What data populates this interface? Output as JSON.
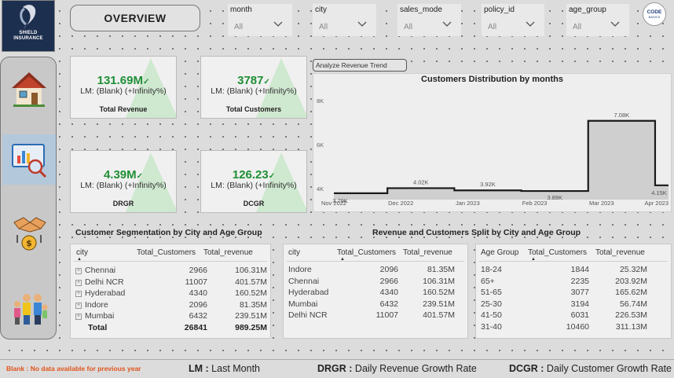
{
  "brand": {
    "line1": "SHIELD",
    "line2": "INSURANCE"
  },
  "header": {
    "title": "OVERVIEW"
  },
  "slicers": [
    {
      "label": "month",
      "value": "All"
    },
    {
      "label": "city",
      "value": "All"
    },
    {
      "label": "sales_mode",
      "value": "All"
    },
    {
      "label": "policy_id",
      "value": "All"
    },
    {
      "label": "age_group",
      "value": "All"
    }
  ],
  "partner": {
    "line1": "CODE",
    "line2": "BASICS"
  },
  "nav": [
    "home-icon",
    "analytics-icon",
    "money-handshake-icon",
    "family-icon"
  ],
  "kpis": [
    {
      "value": "131.69M",
      "lm": "LM: (Blank) (+Infinity%)",
      "title": "Total Revenue"
    },
    {
      "value": "3787",
      "lm": "LM: (Blank) (+Infinity%)",
      "title": "Total Customers"
    },
    {
      "value": "4.39M",
      "lm": "LM: (Blank) (+Infinity%)",
      "title": "DRGR"
    },
    {
      "value": "126.23",
      "lm": "LM: (Blank) (+Infinity%)",
      "title": "DCGR"
    }
  ],
  "analyze_button": "Analyze Revenue Trend",
  "chart_data": {
    "type": "area",
    "title": "Customers Distribution by months",
    "x": [
      "Nov 2022",
      "Dec 2022",
      "Jan 2023",
      "Feb 2023",
      "Mar 2023",
      "Apr 2023"
    ],
    "values": [
      3790,
      4020,
      3920,
      3890,
      7080,
      4150
    ],
    "data_labels": [
      "3.79K",
      "4.02K",
      "3.92K",
      "3.89K",
      "7.08K",
      "4.15K"
    ],
    "yticks": [
      "4K",
      "6K",
      "8K"
    ],
    "ylim": [
      3500,
      8500
    ],
    "grid": false,
    "step": true
  },
  "sections": {
    "segmentation": "Customer Segmentation by City and Age Group",
    "split": "Revenue and Customers Split by City and Age Group"
  },
  "table1": {
    "headers": [
      "city",
      "Total_Customers",
      "Total_revenue"
    ],
    "rows": [
      [
        "Chennai",
        "2966",
        "106.31M"
      ],
      [
        "Delhi NCR",
        "11007",
        "401.57M"
      ],
      [
        "Hyderabad",
        "4340",
        "160.52M"
      ],
      [
        "Indore",
        "2096",
        "81.35M"
      ],
      [
        "Mumbai",
        "6432",
        "239.51M"
      ]
    ],
    "total": [
      "Total",
      "26841",
      "989.25M"
    ]
  },
  "table2": {
    "headers": [
      "city",
      "Total_Customers",
      "Total_revenue"
    ],
    "rows": [
      [
        "Indore",
        "2096",
        "81.35M"
      ],
      [
        "Chennai",
        "2966",
        "106.31M"
      ],
      [
        "Hyderabad",
        "4340",
        "160.52M"
      ],
      [
        "Mumbai",
        "6432",
        "239.51M"
      ],
      [
        "Delhi NCR",
        "11007",
        "401.57M"
      ]
    ]
  },
  "table3": {
    "headers": [
      "Age Group",
      "Total_Customers",
      "Total_revenue"
    ],
    "rows": [
      [
        "18-24",
        "1844",
        "25.32M"
      ],
      [
        "65+",
        "2235",
        "203.92M"
      ],
      [
        "51-65",
        "3077",
        "165.62M"
      ],
      [
        "25-30",
        "3194",
        "56.74M"
      ],
      [
        "41-50",
        "6031",
        "226.53M"
      ],
      [
        "31-40",
        "10460",
        "311.13M"
      ]
    ]
  },
  "footer": {
    "blank_note": "Blank : No data available for previous year",
    "lm_key": "LM :",
    "lm_text": " Last Month",
    "drgr_key": "DRGR :",
    "drgr_text": " Daily Revenue Growth Rate",
    "dcgr_key": "DCGR :",
    "dcgr_text": " Daily Customer Growth Rate"
  },
  "colors": {
    "kpi_green": "#1f8f35",
    "note_orange": "#e0531b",
    "brand_navy": "#1d2f4f"
  }
}
